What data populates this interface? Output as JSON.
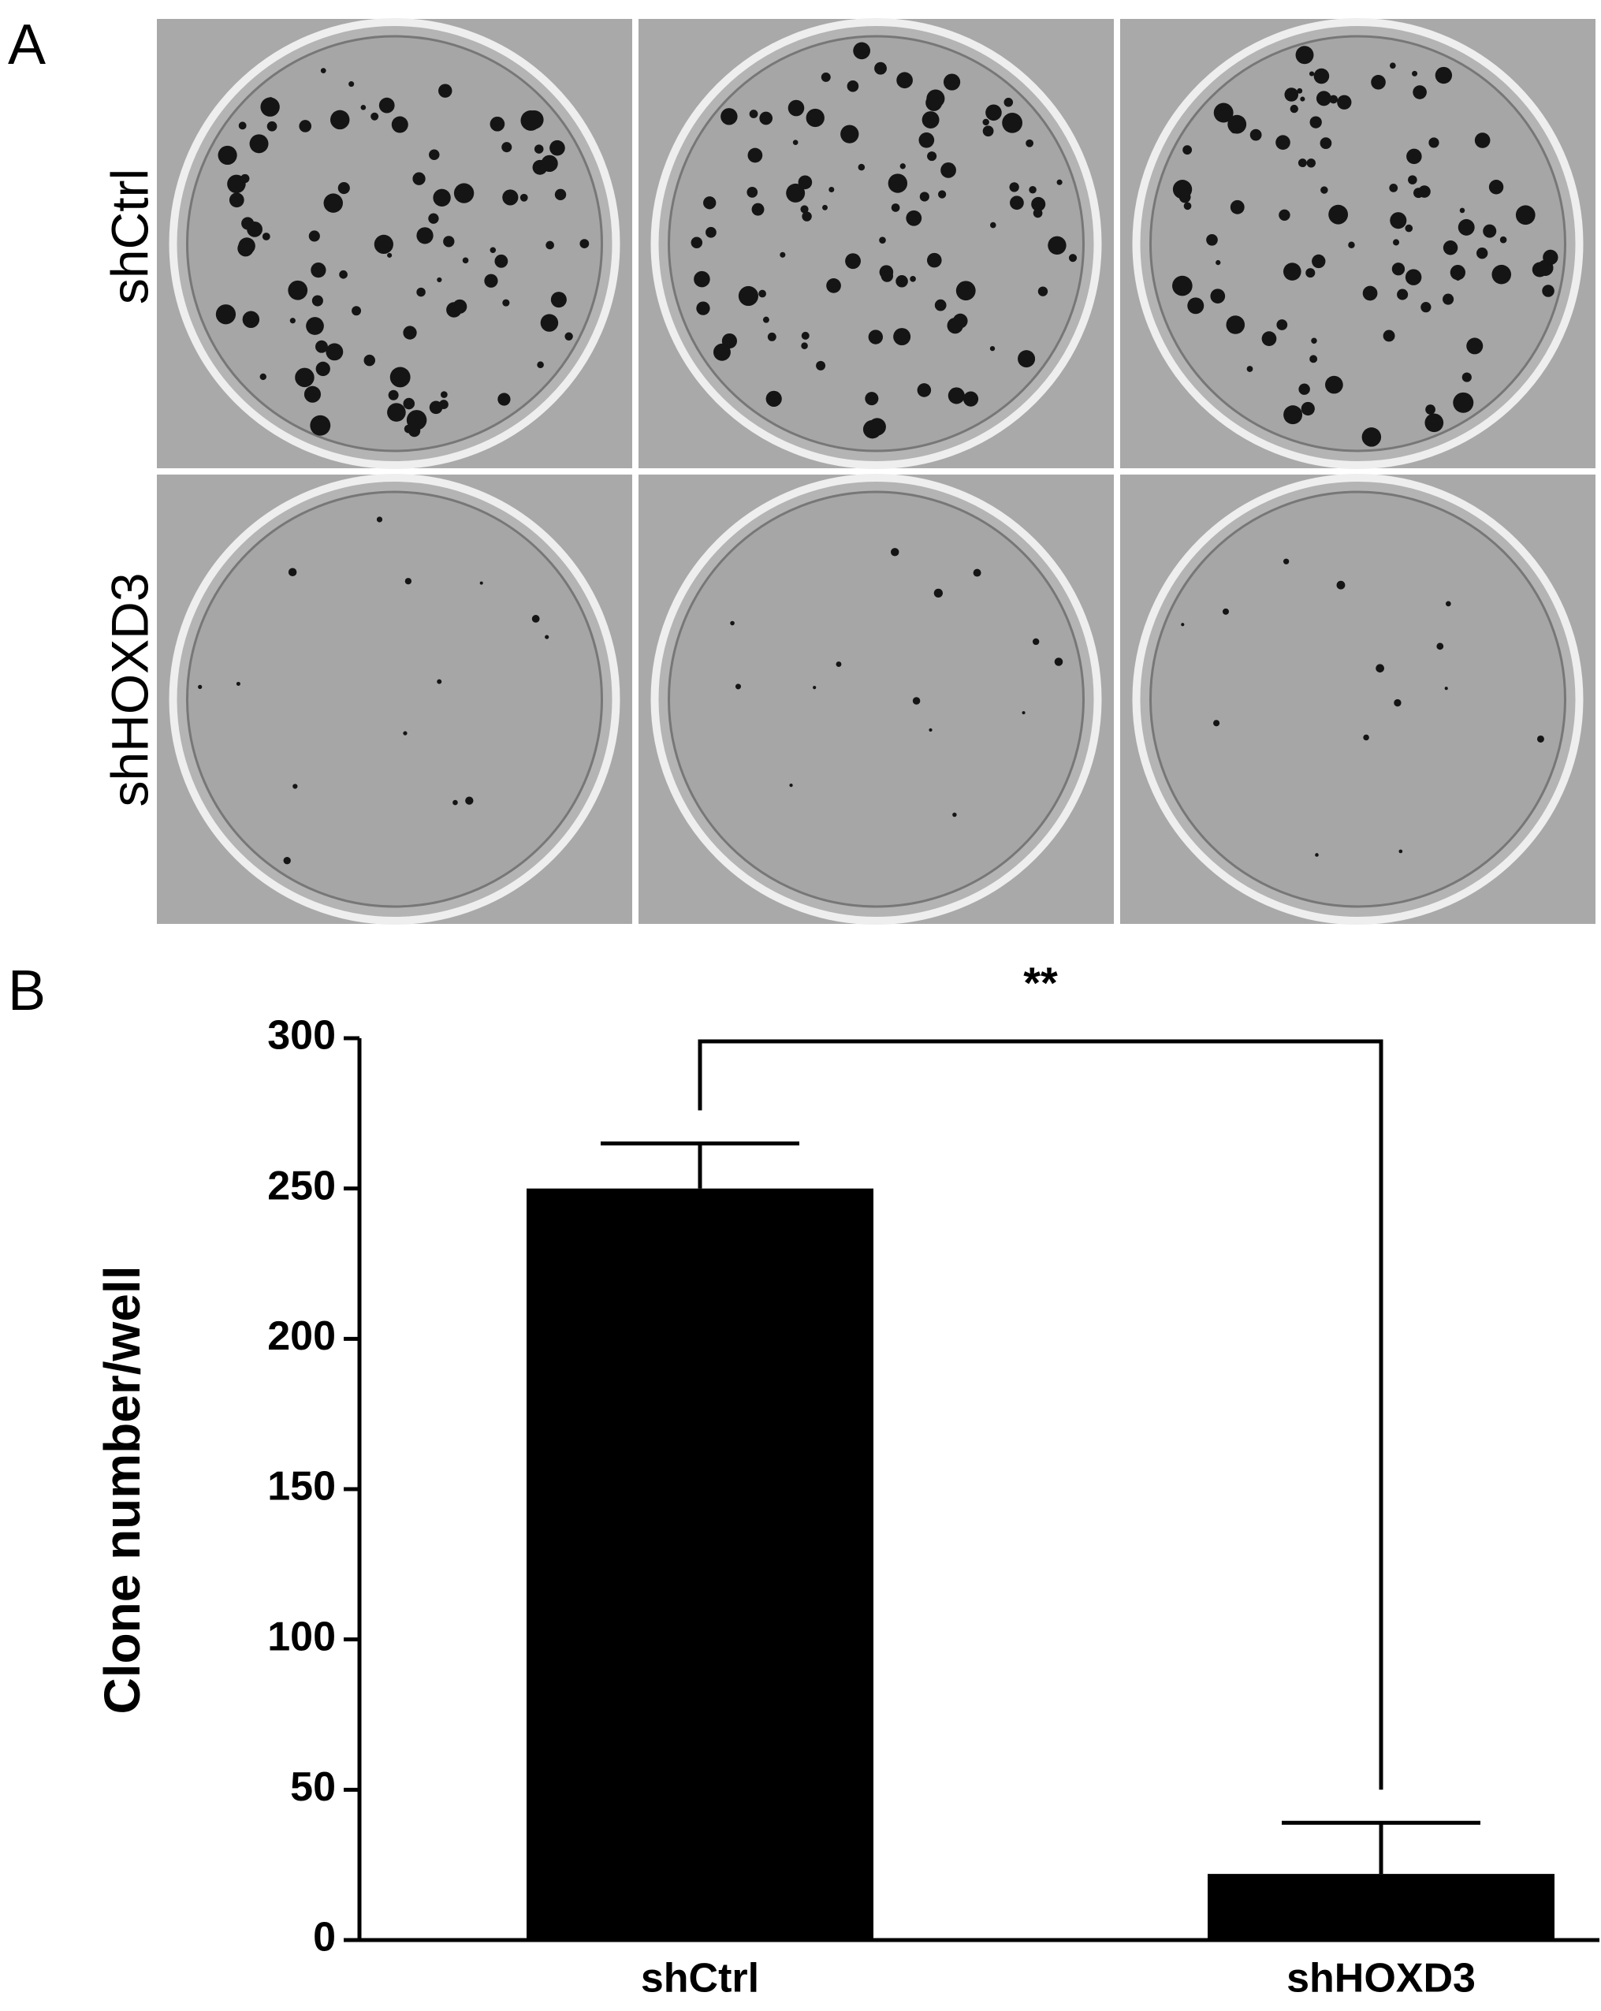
{
  "panel_a": {
    "label": "A",
    "row_labels": [
      "shCtrl",
      "shHOXD3"
    ]
  },
  "chart_data": {
    "type": "bar",
    "panel_label": "B",
    "y_label": "Clone number/well",
    "categories": [
      "shCtrl",
      "shHOXD3"
    ],
    "values": [
      250,
      22
    ],
    "errors": [
      15,
      17
    ],
    "color": "#000000",
    "ylim": [
      0,
      300
    ],
    "yticks": [
      0,
      50,
      100,
      150,
      200,
      250,
      300
    ],
    "annotation": "**"
  }
}
